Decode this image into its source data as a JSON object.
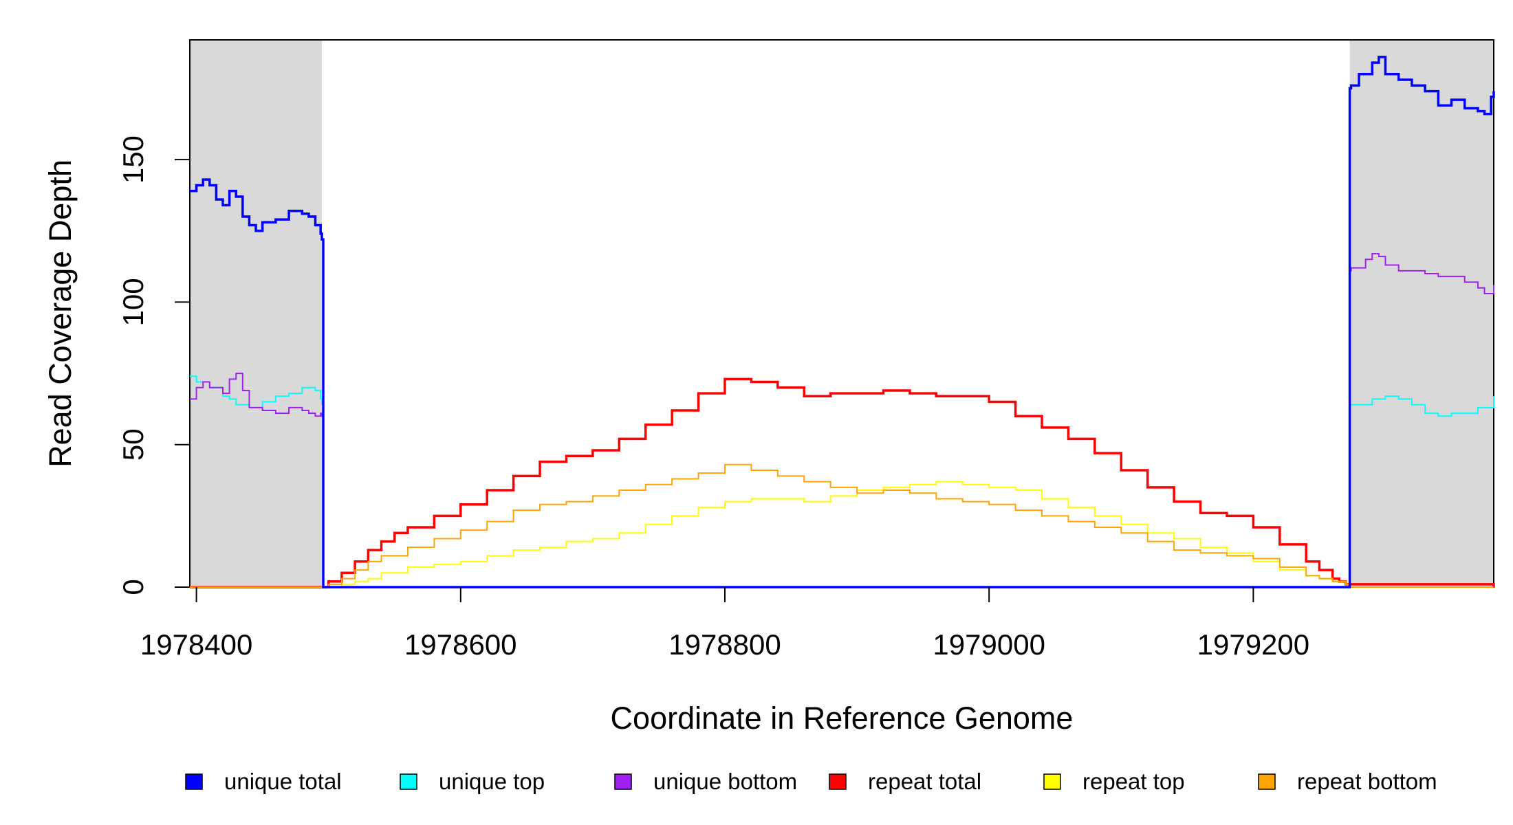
{
  "chart_data": {
    "type": "line",
    "title": "",
    "xlabel": "Coordinate in Reference Genome",
    "ylabel": "Read Coverage Depth",
    "xlim": [
      1978395,
      1979382
    ],
    "ylim": [
      0,
      192
    ],
    "x_ticks": [
      1978400,
      1978600,
      1978800,
      1979000,
      1979200
    ],
    "x_tick_labels": [
      "1978400",
      "1978600",
      "1978800",
      "1979000",
      "1979200"
    ],
    "y_ticks": [
      0,
      50,
      100,
      150
    ],
    "y_tick_labels": [
      "0",
      "50",
      "100",
      "150"
    ],
    "shaded_regions": [
      {
        "x_start": 1978395,
        "x_end": 1978495,
        "color": "#d9d9d9"
      },
      {
        "x_start": 1979273,
        "x_end": 1979382,
        "color": "#d9d9d9"
      }
    ],
    "legend_position": "bottom",
    "series": [
      {
        "name": "unique total",
        "color": "#0000ff",
        "x": [
          1978395,
          1978400,
          1978405,
          1978410,
          1978415,
          1978420,
          1978425,
          1978430,
          1978435,
          1978440,
          1978445,
          1978450,
          1978460,
          1978470,
          1978480,
          1978485,
          1978490,
          1978494,
          1978495,
          1978496,
          1979272,
          1979273,
          1979274,
          1979280,
          1979290,
          1979295,
          1979300,
          1979310,
          1979320,
          1979330,
          1979340,
          1979350,
          1979360,
          1979370,
          1979375,
          1979380,
          1979382
        ],
        "y": [
          139,
          141,
          143,
          141,
          136,
          134,
          139,
          137,
          130,
          127,
          125,
          128,
          129,
          132,
          131,
          130,
          127,
          124,
          122,
          0,
          0,
          175,
          176,
          180,
          184,
          186,
          180,
          178,
          176,
          174,
          169,
          171,
          168,
          167,
          166,
          172,
          174
        ]
      },
      {
        "name": "unique top",
        "color": "#00ffff",
        "x": [
          1978395,
          1978400,
          1978410,
          1978420,
          1978425,
          1978430,
          1978440,
          1978450,
          1978460,
          1978470,
          1978480,
          1978490,
          1978494,
          1978495,
          1978496,
          1979272,
          1979273,
          1979274,
          1979290,
          1979300,
          1979310,
          1979320,
          1979330,
          1979340,
          1979350,
          1979360,
          1979370,
          1979382
        ],
        "y": [
          74,
          72,
          70,
          67,
          66,
          64,
          63,
          65,
          67,
          68,
          70,
          69,
          66,
          64,
          0,
          0,
          64,
          64,
          66,
          67,
          66,
          64,
          61,
          60,
          61,
          61,
          63,
          67
        ]
      },
      {
        "name": "unique bottom",
        "color": "#a020f0",
        "x": [
          1978395,
          1978400,
          1978405,
          1978410,
          1978420,
          1978425,
          1978430,
          1978435,
          1978440,
          1978450,
          1978460,
          1978470,
          1978480,
          1978485,
          1978490,
          1978494,
          1978495,
          1978496,
          1979272,
          1979273,
          1979274,
          1979285,
          1979290,
          1979295,
          1979300,
          1979310,
          1979320,
          1979330,
          1979340,
          1979350,
          1979360,
          1979370,
          1979375,
          1979382
        ],
        "y": [
          66,
          70,
          72,
          70,
          68,
          73,
          75,
          69,
          63,
          62,
          61,
          63,
          62,
          61,
          60,
          61,
          60,
          0,
          0,
          111,
          112,
          115,
          117,
          116,
          113,
          111,
          111,
          110,
          109,
          109,
          107,
          105,
          103,
          106
        ]
      },
      {
        "name": "repeat total",
        "color": "#ff0000",
        "x": [
          1978395,
          1978495,
          1978500,
          1978510,
          1978520,
          1978530,
          1978540,
          1978550,
          1978560,
          1978580,
          1978600,
          1978620,
          1978640,
          1978660,
          1978680,
          1978700,
          1978720,
          1978740,
          1978760,
          1978780,
          1978800,
          1978820,
          1978840,
          1978860,
          1978880,
          1978900,
          1978920,
          1978940,
          1978960,
          1978980,
          1979000,
          1979020,
          1979040,
          1979060,
          1979080,
          1979100,
          1979120,
          1979140,
          1979160,
          1979180,
          1979200,
          1979220,
          1979240,
          1979250,
          1979260,
          1979265,
          1979270,
          1979272,
          1979382
        ],
        "y": [
          0,
          0,
          2,
          5,
          9,
          13,
          16,
          19,
          21,
          25,
          29,
          34,
          39,
          44,
          46,
          48,
          52,
          57,
          62,
          68,
          73,
          72,
          70,
          67,
          68,
          68,
          69,
          68,
          67,
          67,
          65,
          60,
          56,
          52,
          47,
          41,
          35,
          30,
          26,
          25,
          21,
          15,
          9,
          6,
          3,
          2,
          1,
          1,
          0
        ]
      },
      {
        "name": "repeat top",
        "color": "#ffff00",
        "x": [
          1978395,
          1978495,
          1978500,
          1978510,
          1978520,
          1978530,
          1978540,
          1978560,
          1978580,
          1978600,
          1978620,
          1978640,
          1978660,
          1978680,
          1978700,
          1978720,
          1978740,
          1978760,
          1978780,
          1978800,
          1978820,
          1978840,
          1978860,
          1978880,
          1978900,
          1978920,
          1978940,
          1978960,
          1978980,
          1979000,
          1979020,
          1979040,
          1979060,
          1979080,
          1979100,
          1979120,
          1979140,
          1979160,
          1979180,
          1979200,
          1979220,
          1979240,
          1979250,
          1979260,
          1979270,
          1979272,
          1979382
        ],
        "y": [
          0,
          0,
          0,
          1,
          2,
          3,
          5,
          7,
          8,
          9,
          11,
          13,
          14,
          16,
          17,
          19,
          22,
          25,
          28,
          30,
          31,
          31,
          30,
          32,
          34,
          35,
          36,
          37,
          36,
          35,
          34,
          31,
          28,
          25,
          22,
          19,
          17,
          14,
          12,
          9,
          6,
          4,
          3,
          2,
          1,
          0,
          0
        ]
      },
      {
        "name": "repeat bottom",
        "color": "#ffa500",
        "x": [
          1978395,
          1978495,
          1978500,
          1978510,
          1978520,
          1978530,
          1978540,
          1978560,
          1978580,
          1978600,
          1978620,
          1978640,
          1978660,
          1978680,
          1978700,
          1978720,
          1978740,
          1978760,
          1978780,
          1978800,
          1978820,
          1978840,
          1978860,
          1978880,
          1978900,
          1978920,
          1978940,
          1978960,
          1978980,
          1979000,
          1979020,
          1979040,
          1979060,
          1979080,
          1979100,
          1979120,
          1979140,
          1979160,
          1979180,
          1979200,
          1979220,
          1979240,
          1979250,
          1979260,
          1979270,
          1979272,
          1979382
        ],
        "y": [
          0,
          0,
          1,
          3,
          6,
          9,
          11,
          14,
          17,
          20,
          23,
          27,
          29,
          30,
          32,
          34,
          36,
          38,
          40,
          43,
          41,
          39,
          37,
          35,
          33,
          34,
          33,
          31,
          30,
          29,
          27,
          25,
          23,
          21,
          19,
          16,
          13,
          12,
          11,
          10,
          7,
          4,
          3,
          2,
          1,
          0,
          0
        ]
      }
    ]
  }
}
